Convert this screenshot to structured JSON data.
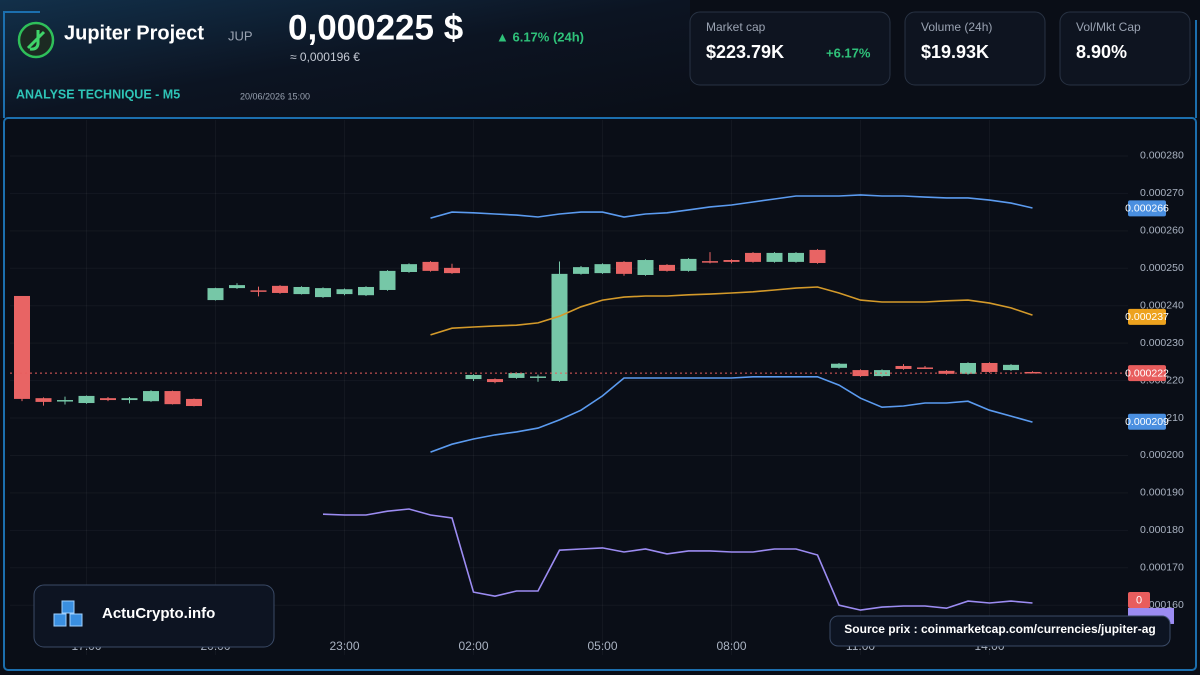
{
  "header": {
    "title": "Jupiter Project",
    "ticker": "JUP",
    "price": "0,000225 $",
    "change": "▲ 6.17% (24h)",
    "price_eur": "≈ 0,000196 €",
    "section": "ANALYSE TECHNIQUE - M5",
    "date": "20/06/2026 15:00"
  },
  "cards": [
    {
      "label": "Market cap",
      "value": "$223.79K",
      "change": "+6.17%"
    },
    {
      "label": "Volume (24h)",
      "value": "$19.93K"
    },
    {
      "label": "Vol/Mkt Cap",
      "value": "8.90%"
    }
  ],
  "footer": {
    "brand": "ActuCrypto.info",
    "source": "Source prix : coinmarketcap.com/currencies/jupiter-ag"
  },
  "chart_data": {
    "type": "candlestick",
    "categories": [
      null,
      null,
      null,
      "17:00",
      null,
      null,
      null,
      null,
      null,
      "20:00",
      null,
      null,
      null,
      null,
      null,
      "23:00",
      null,
      null,
      null,
      null,
      null,
      "02:00",
      null,
      null,
      null,
      null,
      null,
      "05:00",
      null,
      null,
      null,
      null,
      null,
      "08:00",
      null,
      null,
      null,
      null,
      null,
      "11:00",
      null,
      null,
      null,
      null,
      null,
      "14:00",
      null,
      null
    ],
    "open": [
      0.0002426,
      0.0002153,
      0.0002146,
      0.000214,
      0.0002153,
      0.0002148,
      0.0002145,
      0.0002172,
      0.0002151,
      0.0002415,
      0.0002447,
      0.0002441,
      0.0002453,
      0.0002431,
      0.0002423,
      0.0002431,
      0.0002428,
      0.0002442,
      0.000249,
      0.0002517,
      0.0002501,
      0.0002204,
      0.0002204,
      0.0002207,
      0.0002209,
      0.0002199,
      0.0002485,
      0.0002487,
      0.0002517,
      0.0002482,
      0.0002509,
      0.0002493,
      0.0002519,
      0.0002522,
      0.0002541,
      0.0002517,
      0.0002517,
      0.0002549,
      0.0002234,
      0.0002228,
      0.0002212,
      0.0002239,
      0.0002235,
      0.0002226,
      0.0002218,
      0.0002247,
      0.0002228,
      0.0002223
    ],
    "high": [
      0.0002426,
      0.0002155,
      0.0002157,
      0.000216,
      0.0002156,
      0.0002156,
      0.0002174,
      0.0002173,
      0.0002152,
      0.0002448,
      0.000246,
      0.0002451,
      0.0002455,
      0.0002452,
      0.0002449,
      0.0002446,
      0.0002452,
      0.0002495,
      0.0002513,
      0.0002519,
      0.0002512,
      0.0002217,
      0.0002206,
      0.0002222,
      0.0002216,
      0.0002518,
      0.0002506,
      0.0002513,
      0.0002519,
      0.0002524,
      0.0002511,
      0.0002527,
      0.0002543,
      0.0002524,
      0.0002543,
      0.0002543,
      0.0002543,
      0.0002551,
      0.0002247,
      0.000223,
      0.000223,
      0.0002244,
      0.0002239,
      0.0002228,
      0.0002249,
      0.0002249,
      0.0002244,
      0.0002225
    ],
    "low": [
      0.0002145,
      0.0002133,
      0.0002136,
      0.0002138,
      0.0002145,
      0.0002139,
      0.0002143,
      0.0002136,
      0.0002131,
      0.0002414,
      0.0002445,
      0.0002425,
      0.0002432,
      0.000243,
      0.0002421,
      0.0002428,
      0.0002426,
      0.000244,
      0.0002488,
      0.0002491,
      0.0002485,
      0.0002199,
      0.0002193,
      0.0002205,
      0.0002197,
      0.0002197,
      0.0002483,
      0.0002485,
      0.000248,
      0.000248,
      0.0002491,
      0.0002491,
      0.0002513,
      0.0002513,
      0.0002515,
      0.0002515,
      0.0002515,
      0.0002512,
      0.0002232,
      0.000221,
      0.000221,
      0.0002229,
      0.0002231,
      0.0002216,
      0.0002216,
      0.0002221,
      0.0002226,
      0.000222
    ],
    "close": [
      0.0002151,
      0.0002143,
      0.0002148,
      0.0002159,
      0.0002148,
      0.0002153,
      0.0002172,
      0.0002137,
      0.0002132,
      0.0002447,
      0.0002455,
      0.0002439,
      0.0002434,
      0.000245,
      0.0002447,
      0.0002444,
      0.000245,
      0.0002493,
      0.0002511,
      0.0002493,
      0.0002487,
      0.0002215,
      0.0002196,
      0.000222,
      0.0002211,
      0.0002485,
      0.0002503,
      0.0002511,
      0.0002485,
      0.0002522,
      0.0002493,
      0.0002525,
      0.0002517,
      0.0002517,
      0.0002517,
      0.0002541,
      0.0002541,
      0.0002514,
      0.0002245,
      0.0002212,
      0.0002228,
      0.0002231,
      0.0002233,
      0.0002218,
      0.0002247,
      0.0002223,
      0.0002242,
      0.0002222
    ],
    "up_color": "#76c7a7",
    "down_color": "#e86464",
    "lines": [
      {
        "color": "#5b9bf0",
        "values": [
          null,
          null,
          null,
          null,
          null,
          null,
          null,
          null,
          null,
          null,
          null,
          null,
          null,
          null,
          null,
          null,
          null,
          null,
          null,
          0.0002634,
          0.000265,
          0.0002648,
          0.0002645,
          0.0002642,
          0.0002637,
          0.0002645,
          0.000265,
          0.000265,
          0.0002637,
          0.0002645,
          0.0002648,
          0.0002656,
          0.0002664,
          0.0002669,
          0.0002677,
          0.0002685,
          0.0002693,
          0.0002693,
          0.0002693,
          0.0002696,
          0.0002693,
          0.0002693,
          0.000269,
          0.0002688,
          0.0002688,
          0.0002682,
          0.0002674,
          0.0002661
        ]
      },
      {
        "color": "#d49a2a",
        "values": [
          null,
          null,
          null,
          null,
          null,
          null,
          null,
          null,
          null,
          null,
          null,
          null,
          null,
          null,
          null,
          null,
          null,
          null,
          null,
          0.0002322,
          0.000234,
          0.0002343,
          0.0002346,
          0.0002348,
          0.0002354,
          0.0002372,
          0.0002397,
          0.0002415,
          0.0002423,
          0.0002426,
          0.0002426,
          0.0002429,
          0.0002431,
          0.0002434,
          0.0002437,
          0.0002442,
          0.0002447,
          0.000245,
          0.0002434,
          0.0002415,
          0.000241,
          0.000241,
          0.000241,
          0.0002413,
          0.0002415,
          0.0002407,
          0.0002394,
          0.0002375
        ]
      },
      {
        "color": "#5b9bf0",
        "values": [
          null,
          null,
          null,
          null,
          null,
          null,
          null,
          null,
          null,
          null,
          null,
          null,
          null,
          null,
          null,
          null,
          null,
          null,
          null,
          0.0002009,
          0.000203,
          0.0002044,
          0.0002055,
          0.0002063,
          0.0002073,
          0.0002095,
          0.0002121,
          0.0002159,
          0.0002207,
          0.0002207,
          0.0002207,
          0.0002207,
          0.0002207,
          0.0002207,
          0.000221,
          0.000221,
          0.000221,
          0.000221,
          0.0002188,
          0.0002153,
          0.0002129,
          0.0002132,
          0.000214,
          0.000214,
          0.0002145,
          0.0002121,
          0.0002105,
          0.0002089
        ]
      },
      {
        "color": "#9c8cf2",
        "values": [
          null,
          null,
          null,
          null,
          null,
          null,
          null,
          null,
          null,
          null,
          null,
          null,
          null,
          null,
          0.0001843,
          0.0001841,
          0.0001841,
          0.0001851,
          0.0001857,
          0.0001841,
          0.0001833,
          0.0001635,
          0.0001624,
          0.0001638,
          0.0001638,
          0.0001747,
          0.000175,
          0.0001753,
          0.0001742,
          0.000175,
          0.0001737,
          0.0001745,
          0.0001745,
          0.0001742,
          0.0001742,
          0.000175,
          0.000175,
          0.0001734,
          0.00016,
          0.0001587,
          0.0001595,
          0.0001598,
          0.0001598,
          0.0001592,
          0.0001611,
          0.0001606,
          0.0001611,
          0.0001606
        ]
      }
    ],
    "price_tags": [
      {
        "value": 0.000266,
        "color": "#4a8fe0"
      },
      {
        "value": 0.000237,
        "color": "#eda21e"
      },
      {
        "value": 0.000222,
        "color": "#e85d5d",
        "dashed_line": true
      },
      {
        "value": 0.000209,
        "color": "#4a8fe0"
      }
    ],
    "indicator_tag": {
      "label": "0",
      "color": "#e85d5d"
    },
    "ylim": [
      0.0001467,
      0.0002896
    ],
    "yticks": [
      {
        "value": 0.00016,
        "label": "0.000160"
      },
      {
        "value": 0.00017,
        "label": "0.000170"
      },
      {
        "value": 0.00018,
        "label": "0.000180"
      },
      {
        "value": 0.00019,
        "label": "0.000190"
      },
      {
        "value": 0.0002,
        "label": "0.000200"
      },
      {
        "value": 0.00021,
        "label": "0.000210"
      },
      {
        "value": 0.00022,
        "label": "0.000220"
      },
      {
        "value": 0.00023,
        "label": "0.000230"
      },
      {
        "value": 0.00024,
        "label": "0.000240"
      },
      {
        "value": 0.00025,
        "label": "0.000250"
      },
      {
        "value": 0.00026,
        "label": "0.000260"
      },
      {
        "value": 0.00027,
        "label": "0.000270"
      },
      {
        "value": 0.00028,
        "label": "0.000280"
      }
    ],
    "grid": true
  }
}
